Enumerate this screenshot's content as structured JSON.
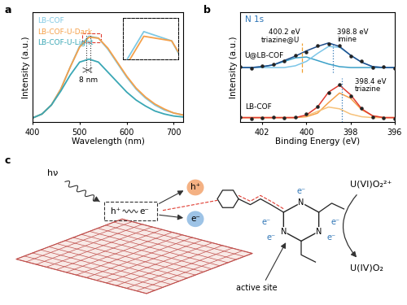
{
  "chart_data": [
    {
      "type": "line",
      "xlabel": "Wavelength (nm)",
      "ylabel": "Intensity (a.u.)",
      "x": [
        400,
        420,
        440,
        460,
        480,
        500,
        520,
        540,
        560,
        580,
        600,
        620,
        640,
        660,
        680,
        700,
        720
      ],
      "series": [
        {
          "name": "LB-COF",
          "color": "#7ec8e3",
          "values": [
            0.04,
            0.08,
            0.17,
            0.33,
            0.55,
            0.76,
            0.86,
            0.84,
            0.73,
            0.59,
            0.45,
            0.33,
            0.24,
            0.17,
            0.12,
            0.09,
            0.07
          ]
        },
        {
          "name": "LB-COF-U-Dark",
          "color": "#f5a04a",
          "values": [
            0.04,
            0.08,
            0.17,
            0.33,
            0.55,
            0.75,
            0.85,
            0.84,
            0.74,
            0.6,
            0.46,
            0.34,
            0.25,
            0.18,
            0.13,
            0.09,
            0.07
          ]
        },
        {
          "name": "LB-COF-U-Light",
          "color": "#3aa7b5",
          "values": [
            0.04,
            0.08,
            0.17,
            0.31,
            0.47,
            0.6,
            0.63,
            0.6,
            0.5,
            0.4,
            0.3,
            0.22,
            0.16,
            0.11,
            0.08,
            0.06,
            0.05
          ]
        }
      ],
      "xlim": [
        400,
        720
      ],
      "xticks": [
        400,
        500,
        600,
        700
      ],
      "ylim": [
        0,
        1.1
      ],
      "yticks": [],
      "tick_labels": "x",
      "legend": "upper left",
      "peak_lines": [
        515,
        523
      ],
      "annotation": "8 nm",
      "inset": {
        "xlim": [
          505,
          545
        ],
        "ylim": [
          0.8,
          0.89
        ],
        "series": [
          "LB-COF",
          "LB-COF-U-Dark"
        ]
      }
    },
    {
      "type": "line",
      "title": "N 1s",
      "xlabel": "Binding Energy (eV)",
      "ylabel": "Intensity (a.u.)",
      "x": [
        403.0,
        402.5,
        402.0,
        401.5,
        401.0,
        400.5,
        400.0,
        399.5,
        399.0,
        398.5,
        398.0,
        397.5,
        397.0,
        396.5,
        396.0
      ],
      "xlim": [
        403,
        396
      ],
      "xticks": [
        402,
        400,
        398,
        396
      ],
      "ylim": [
        0,
        1.25
      ],
      "yticks": [],
      "tick_labels": "x",
      "spectra": [
        {
          "label": "U@LB-COF",
          "series": [
            {
              "type": "line",
              "color": "#3aa0c8",
              "values": [
                0.62,
                0.62,
                0.63,
                0.65,
                0.69,
                0.73,
                0.74,
                0.7,
                0.66,
                0.63,
                0.62,
                0.62,
                0.62,
                0.62,
                0.62
              ]
            },
            {
              "type": "line",
              "color": "#7cc6e8",
              "values": [
                0.62,
                0.62,
                0.62,
                0.62,
                0.62,
                0.64,
                0.69,
                0.78,
                0.86,
                0.85,
                0.76,
                0.68,
                0.63,
                0.62,
                0.62
              ]
            },
            {
              "type": "line",
              "color": "#1f4e8c",
              "values": [
                0.62,
                0.62,
                0.63,
                0.65,
                0.7,
                0.75,
                0.81,
                0.86,
                0.9,
                0.86,
                0.76,
                0.68,
                0.63,
                0.62,
                0.62
              ]
            },
            {
              "type": "scatter",
              "color": "#222222",
              "values": [
                0.63,
                0.61,
                0.64,
                0.66,
                0.69,
                0.76,
                0.8,
                0.87,
                0.89,
                0.87,
                0.75,
                0.69,
                0.62,
                0.63,
                0.61
              ]
            }
          ]
        },
        {
          "label": "LB-COF",
          "series": [
            {
              "type": "line",
              "color": "#f5a04a",
              "values": [
                0.05,
                0.05,
                0.05,
                0.05,
                0.05,
                0.05,
                0.06,
                0.1,
                0.22,
                0.33,
                0.27,
                0.14,
                0.07,
                0.05,
                0.05
              ]
            },
            {
              "type": "line",
              "color": "#f7c27a",
              "values": [
                0.05,
                0.05,
                0.05,
                0.05,
                0.05,
                0.05,
                0.07,
                0.12,
                0.17,
                0.15,
                0.09,
                0.06,
                0.05,
                0.05,
                0.05
              ]
            },
            {
              "type": "line",
              "color": "#e03c31",
              "values": [
                0.05,
                0.05,
                0.05,
                0.05,
                0.05,
                0.05,
                0.08,
                0.17,
                0.34,
                0.42,
                0.31,
                0.15,
                0.07,
                0.05,
                0.05
              ]
            },
            {
              "type": "scatter",
              "color": "#222222",
              "values": [
                0.06,
                0.04,
                0.05,
                0.06,
                0.05,
                0.06,
                0.09,
                0.18,
                0.33,
                0.43,
                0.3,
                0.16,
                0.06,
                0.05,
                0.04
              ]
            }
          ]
        }
      ],
      "peaks": [
        {
          "value": 400.2,
          "label": "400.2 eV",
          "assignment": "triazine@U",
          "color": "#f0a030",
          "line_style": "dashed"
        },
        {
          "value": 398.8,
          "label": "398.8 eV",
          "assignment": "imine",
          "color": "#2e75b6",
          "line_style": "dotted"
        },
        {
          "value": 398.4,
          "label": "398.4 eV",
          "assignment": "triazine",
          "color": "#2e75b6",
          "line_style": "dotted"
        }
      ]
    }
  ],
  "panel_labels": [
    "a",
    "b",
    "c"
  ],
  "diagram": {
    "light": "hν",
    "exciton": {
      "hole": "h⁺",
      "electron": "e⁻"
    },
    "carriers": {
      "hole": "h⁺",
      "electron": "e⁻"
    },
    "triazine": {
      "atoms": [
        "N",
        "N",
        "N"
      ],
      "electrons": [
        "e⁻",
        "e⁻",
        "e⁻",
        "e⁻",
        "e⁻"
      ]
    },
    "reactant": "U(VI)O₂²⁺",
    "product": "U(IV)O₂",
    "site_label": "active site"
  }
}
